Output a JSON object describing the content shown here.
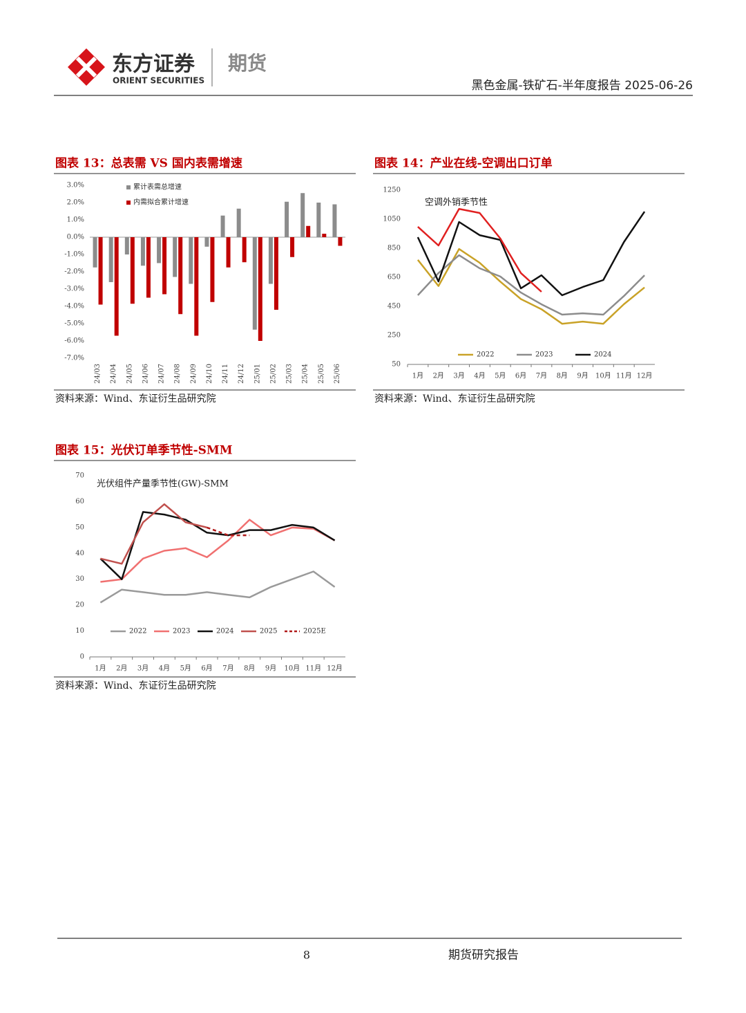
{
  "header": {
    "brand": "东方证券",
    "brand_en": "ORIENT SECURITIES",
    "division": "期货",
    "report_title": "黑色金属-铁矿石-半年度报告 2025-06-26"
  },
  "chart_data": [
    {
      "type": "bar",
      "title": "图表 13：总表需 VS 国内表需增速",
      "source": "资料来源：Wind、东证衍生品研究院",
      "categories": [
        "24/03",
        "24/04",
        "24/05",
        "24/06",
        "24/07",
        "24/08",
        "24/09",
        "24/10",
        "24/11",
        "24/12",
        "25/01",
        "25/02",
        "25/03",
        "25/04",
        "25/05",
        "25/06"
      ],
      "series": [
        {
          "name": "累计表需总增速",
          "color": "#8c8c8c",
          "values": [
            -1.75,
            -2.6,
            -1.0,
            -1.65,
            -1.5,
            -2.3,
            -2.7,
            -0.55,
            1.25,
            1.65,
            -5.35,
            -2.7,
            2.05,
            2.55,
            2.0,
            1.9
          ]
        },
        {
          "name": "内需拟合累计增速",
          "color": "#c00000",
          "values": [
            -3.9,
            -5.7,
            -3.85,
            -3.5,
            -3.3,
            -4.45,
            -5.7,
            -3.75,
            -1.75,
            -1.45,
            -6.0,
            -4.2,
            -1.15,
            0.65,
            0.2,
            -0.5
          ]
        }
      ],
      "ylim": [
        -7,
        3
      ],
      "yticks": [
        {
          "value": 3,
          "label": "3.0%"
        },
        {
          "value": 2,
          "label": "2.0%"
        },
        {
          "value": 1,
          "label": "1.0%"
        },
        {
          "value": 0,
          "label": "0.0%"
        },
        {
          "value": -1,
          "label": "-1.0%"
        },
        {
          "value": -2,
          "label": "-2.0%"
        },
        {
          "value": -3,
          "label": "-3.0%"
        },
        {
          "value": -4,
          "label": "-4.0%"
        },
        {
          "value": -5,
          "label": "-5.0%"
        },
        {
          "value": -6,
          "label": "-6.0%"
        },
        {
          "value": -7,
          "label": "-7.0%"
        }
      ],
      "legend": "upper left"
    },
    {
      "type": "line",
      "title": "图表 14：产业在线-空调出口订单",
      "annotation": "空调外销季节性",
      "source": "资料来源：Wind、东证衍生品研究院",
      "categories": [
        "1月",
        "2月",
        "3月",
        "4月",
        "5月",
        "6月",
        "7月",
        "8月",
        "9月",
        "10月",
        "11月",
        "12月"
      ],
      "series": [
        {
          "name": "2022",
          "color": "#c9a227",
          "values": [
            770,
            590,
            845,
            750,
            620,
            500,
            430,
            330,
            345,
            330,
            465,
            580
          ]
        },
        {
          "name": "2023",
          "color": "#8c8c8c",
          "values": [
            526,
            679,
            802,
            712,
            655,
            545,
            464,
            393,
            402,
            393,
            521,
            664
          ]
        },
        {
          "name": "2024",
          "color": "#111111",
          "values": [
            926,
            621,
            1031,
            940,
            907,
            574,
            664,
            526,
            583,
            631,
            893,
            1102
          ]
        },
        {
          "color": "#e02020",
          "values": [
            998,
            869,
            1121,
            1093,
            917,
            679,
            550,
            null,
            null,
            null,
            null,
            null
          ]
        }
      ],
      "ylim": [
        50,
        1250
      ],
      "yticks": [
        50,
        250,
        450,
        650,
        850,
        1050,
        1250
      ],
      "legend": "lower center"
    },
    {
      "type": "line",
      "title": "图表 15：光伏订单季节性-SMM",
      "annotation": "光伏组件产量季节性(GW)-SMM",
      "source": "资料来源：Wind、东证衍生品研究院",
      "categories": [
        "1月",
        "2月",
        "3月",
        "4月",
        "5月",
        "6月",
        "7月",
        "8月",
        "9月",
        "10月",
        "11月",
        "12月"
      ],
      "series": [
        {
          "name": "2022",
          "color": "#9a9a9a",
          "values": [
            21,
            26,
            25,
            24,
            24,
            25,
            24,
            23,
            27,
            30,
            33,
            27
          ]
        },
        {
          "name": "2023",
          "color": "#f07070",
          "values": [
            29,
            30,
            38,
            41,
            42,
            38.5,
            45,
            53,
            47,
            50,
            49.5,
            45
          ]
        },
        {
          "name": "2024",
          "color": "#111111",
          "values": [
            38,
            30,
            56,
            55,
            53,
            48,
            47,
            49,
            49,
            51,
            50,
            45
          ]
        },
        {
          "name": "2025",
          "color": "#c0504d",
          "values": [
            38,
            36,
            52,
            59,
            52,
            50,
            null,
            null,
            null,
            null,
            null,
            null
          ]
        },
        {
          "name": "2025E",
          "color": "#b01818",
          "dashed": true,
          "values": [
            null,
            null,
            null,
            null,
            null,
            50,
            47,
            47,
            null,
            null,
            null,
            null
          ]
        }
      ],
      "ylim": [
        0,
        70
      ],
      "yticks": [
        0,
        10,
        20,
        30,
        40,
        50,
        60,
        70
      ],
      "legend": "lower center"
    }
  ],
  "footer": {
    "page_number": "8",
    "label": "期货研究报告"
  }
}
